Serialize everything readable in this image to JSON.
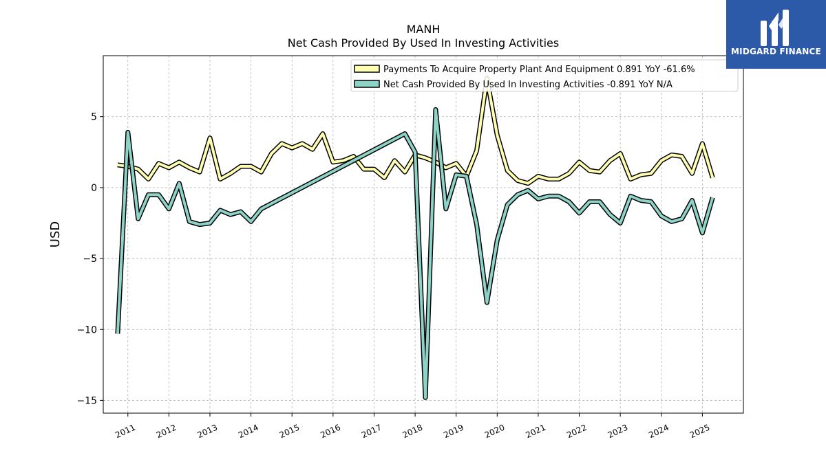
{
  "brand": {
    "name": "MIDGARD FINANCE",
    "color": "#2d5aa8"
  },
  "chart_data": {
    "type": "line",
    "title": "MANH",
    "subtitle": "Net Cash Provided By Used In Investing Activities",
    "xlabel": "",
    "ylabel": "USD",
    "xlim": [
      2010.4,
      2026.0
    ],
    "ylim": [
      -15.9,
      9.3
    ],
    "x_ticks": [
      2011,
      2012,
      2013,
      2014,
      2015,
      2016,
      2017,
      2018,
      2019,
      2020,
      2021,
      2022,
      2023,
      2024,
      2025
    ],
    "y_ticks": [
      5,
      0,
      -5,
      -10,
      -15
    ],
    "y_tick_labels": [
      "5",
      "0",
      "−5",
      "−10",
      "−15"
    ],
    "grid": true,
    "legend_position": "top-right",
    "series": [
      {
        "name": "Payments To Acquire Property Plant And Equipment  0.891 YoY -61.6%",
        "color": "#ffffb3",
        "x": [
          2010.75,
          2011.0,
          2011.25,
          2011.5,
          2011.75,
          2012.0,
          2012.25,
          2012.5,
          2012.75,
          2013.0,
          2013.25,
          2013.5,
          2013.75,
          2014.0,
          2014.25,
          2014.5,
          2014.75,
          2015.0,
          2015.25,
          2015.5,
          2015.75,
          2016.0,
          2016.25,
          2016.5,
          2016.75,
          2017.0,
          2017.25,
          2017.5,
          2017.75,
          2018.0,
          2018.25,
          2018.5,
          2018.75,
          2019.0,
          2019.25,
          2019.5,
          2019.75,
          2020.0,
          2020.25,
          2020.5,
          2020.75,
          2021.0,
          2021.25,
          2021.5,
          2021.75,
          2022.0,
          2022.25,
          2022.5,
          2022.75,
          2023.0,
          2023.25,
          2023.5,
          2023.75,
          2024.0,
          2024.25,
          2024.5,
          2024.75,
          2025.0,
          2025.25
        ],
        "values": [
          1.6,
          1.5,
          1.3,
          0.6,
          1.7,
          1.4,
          1.8,
          1.4,
          1.1,
          3.5,
          0.6,
          1.0,
          1.5,
          1.5,
          1.1,
          2.4,
          3.1,
          2.8,
          3.1,
          2.7,
          3.8,
          1.8,
          1.9,
          2.2,
          1.3,
          1.3,
          0.7,
          1.9,
          1.1,
          2.3,
          2.1,
          1.8,
          1.4,
          1.7,
          0.8,
          2.6,
          7.7,
          3.7,
          1.2,
          0.5,
          0.3,
          0.8,
          0.6,
          0.6,
          1.0,
          1.8,
          1.2,
          1.1,
          1.9,
          2.4,
          0.6,
          0.9,
          1.0,
          1.9,
          2.3,
          2.2,
          1.0,
          3.1,
          0.7
        ]
      },
      {
        "name": "Net Cash Provided By Used In Investing Activities  -0.891 YoY N/A",
        "color": "#8dd3c7",
        "x": [
          2010.75,
          2011.0,
          2011.25,
          2011.5,
          2011.75,
          2012.0,
          2012.25,
          2012.5,
          2012.75,
          2013.0,
          2013.25,
          2013.5,
          2013.75,
          2014.0,
          2014.25,
          2017.75,
          2018.0,
          2018.25,
          2018.5,
          2018.75,
          2019.0,
          2019.25,
          2019.5,
          2019.75,
          2020.0,
          2020.25,
          2020.5,
          2020.75,
          2021.0,
          2021.25,
          2021.5,
          2021.75,
          2022.0,
          2022.25,
          2022.5,
          2022.75,
          2023.0,
          2023.25,
          2023.5,
          2023.75,
          2024.0,
          2024.25,
          2024.5,
          2024.75,
          2025.0,
          2025.25
        ],
        "values": [
          -10.3,
          3.9,
          -2.2,
          -0.5,
          -0.5,
          -1.5,
          0.3,
          -2.4,
          -2.6,
          -2.5,
          -1.6,
          -1.9,
          -1.7,
          -2.4,
          -1.5,
          3.8,
          2.5,
          -14.8,
          5.5,
          -1.5,
          0.9,
          0.8,
          -2.6,
          -8.1,
          -3.7,
          -1.2,
          -0.5,
          -0.2,
          -0.8,
          -0.6,
          -0.6,
          -1.0,
          -1.8,
          -1.0,
          -1.0,
          -1.9,
          -2.5,
          -0.6,
          -0.9,
          -1.0,
          -2.0,
          -2.4,
          -2.2,
          -0.9,
          -3.2,
          -0.7
        ]
      }
    ]
  }
}
